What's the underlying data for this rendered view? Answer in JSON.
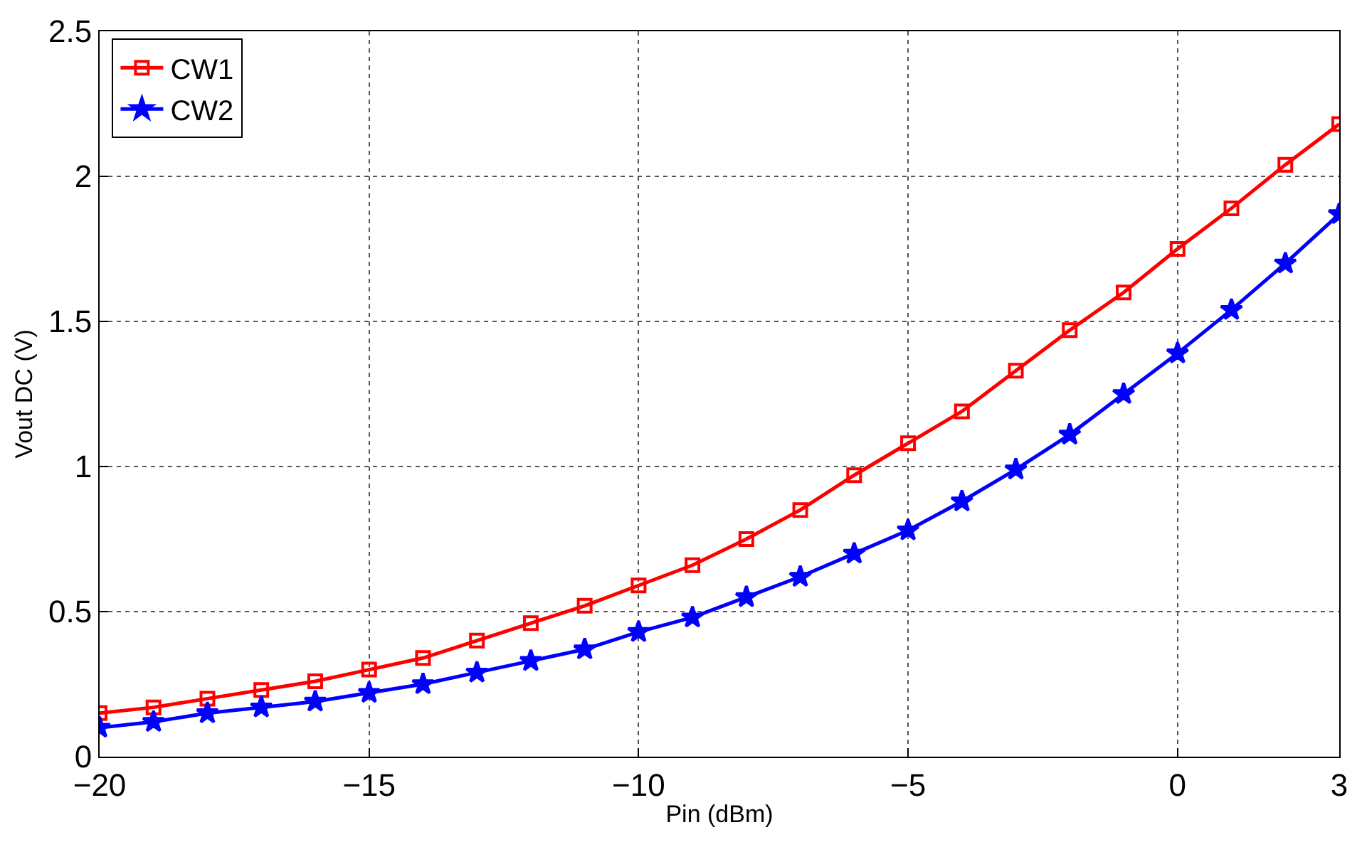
{
  "chart_data": {
    "type": "line",
    "xlabel": "Pin (dBm)",
    "ylabel": "Vout DC (V)",
    "x": [
      -20,
      -19,
      -18,
      -17,
      -16,
      -15,
      -14,
      -13,
      -12,
      -11,
      -10,
      -9,
      -8,
      -7,
      -6,
      -5,
      -4,
      -3,
      -2,
      -1,
      0,
      1,
      2,
      3
    ],
    "series": [
      {
        "name": "CW1",
        "color": "#ff0000",
        "marker": "square",
        "values": [
          0.15,
          0.17,
          0.2,
          0.23,
          0.26,
          0.3,
          0.34,
          0.4,
          0.46,
          0.52,
          0.59,
          0.66,
          0.75,
          0.85,
          0.97,
          1.08,
          1.19,
          1.33,
          1.47,
          1.6,
          1.75,
          1.89,
          2.04,
          2.18
        ]
      },
      {
        "name": "CW2",
        "color": "#0000ff",
        "marker": "star",
        "values": [
          0.1,
          0.12,
          0.15,
          0.17,
          0.19,
          0.22,
          0.25,
          0.29,
          0.33,
          0.37,
          0.43,
          0.48,
          0.55,
          0.62,
          0.7,
          0.78,
          0.88,
          0.99,
          1.11,
          1.25,
          1.39,
          1.54,
          1.7,
          1.87
        ]
      }
    ],
    "xlim": [
      -20,
      3
    ],
    "xticks": [
      -20,
      -15,
      -10,
      -5,
      0,
      3
    ],
    "ylim": [
      0,
      2.5
    ],
    "yticks": [
      0,
      0.5,
      1,
      1.5,
      2,
      2.5
    ],
    "grid": true,
    "legend": "top left",
    "line_style": "solid"
  }
}
